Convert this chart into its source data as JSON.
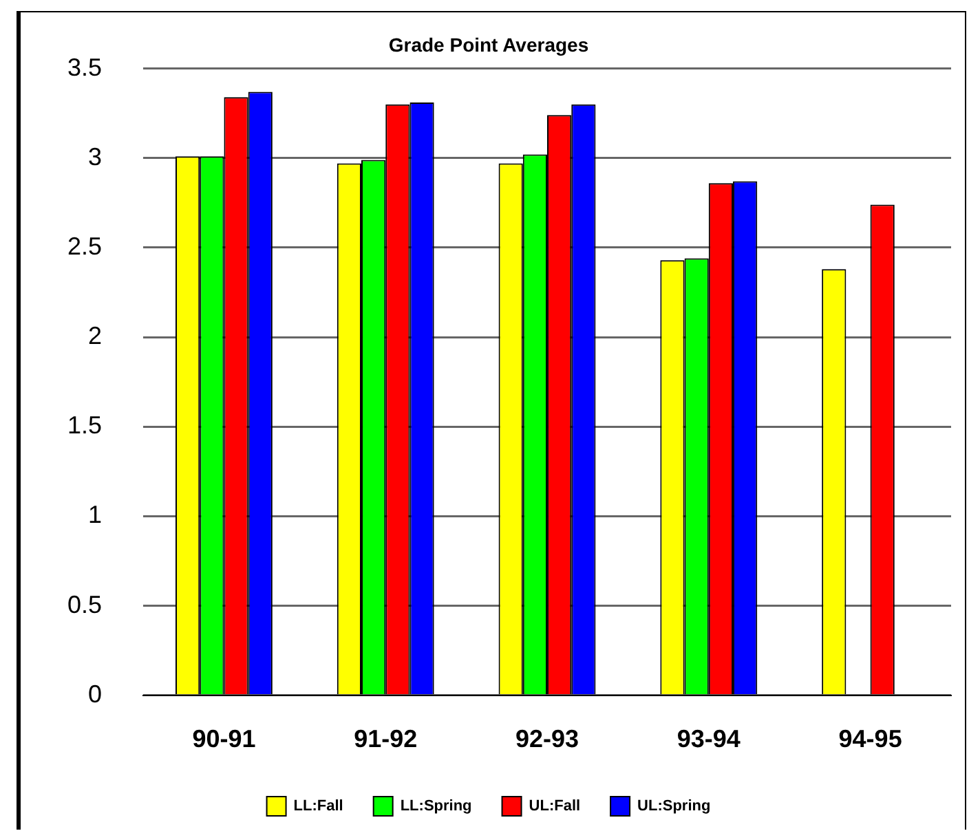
{
  "chart_data": {
    "type": "bar",
    "title": "Grade Point Averages",
    "categories": [
      "90-91",
      "91-92",
      "92-93",
      "93-94",
      "94-95"
    ],
    "series": [
      {
        "name": "LL:Fall",
        "color": "#ffff00",
        "values": [
          3.01,
          2.97,
          2.97,
          2.43,
          2.38
        ]
      },
      {
        "name": "LL:Spring",
        "color": "#00ff00",
        "values": [
          3.01,
          2.99,
          3.02,
          2.44,
          null
        ]
      },
      {
        "name": "UL:Fall",
        "color": "#ff0000",
        "values": [
          3.34,
          3.3,
          3.24,
          2.86,
          2.74
        ]
      },
      {
        "name": "UL:Spring",
        "color": "#0000ff",
        "values": [
          3.37,
          3.31,
          3.3,
          2.87,
          null
        ]
      }
    ],
    "ylim": [
      0,
      3.5
    ],
    "yticks": [
      0,
      0.5,
      1,
      1.5,
      2,
      2.5,
      3,
      3.5
    ],
    "grid": "y",
    "legend": "bottom"
  }
}
